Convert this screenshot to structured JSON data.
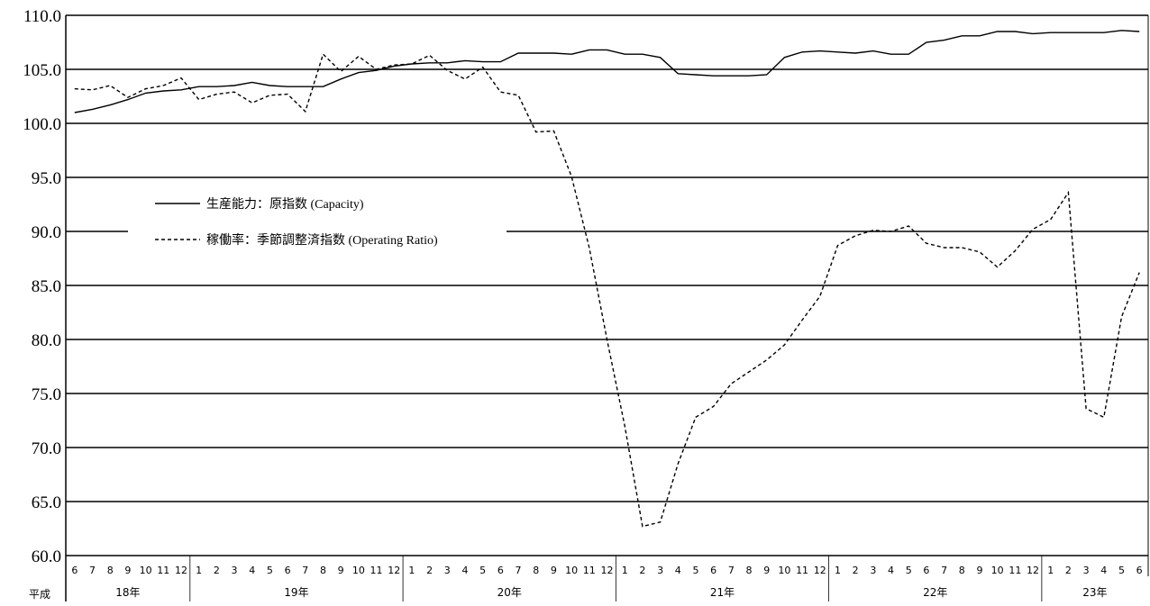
{
  "chart_data": {
    "type": "line",
    "era_prefix": "平成",
    "ylim": [
      60,
      110
    ],
    "yticks": [
      "60.0",
      "65.0",
      "70.0",
      "75.0",
      "80.0",
      "85.0",
      "90.0",
      "95.0",
      "100.0",
      "105.0",
      "110.0"
    ],
    "months": [
      "6",
      "7",
      "8",
      "9",
      "10",
      "11",
      "12",
      "1",
      "2",
      "3",
      "4",
      "5",
      "6",
      "7",
      "8",
      "9",
      "10",
      "11",
      "12",
      "1",
      "2",
      "3",
      "4",
      "5",
      "6",
      "7",
      "8",
      "9",
      "10",
      "11",
      "12",
      "1",
      "2",
      "3",
      "4",
      "5",
      "6",
      "7",
      "8",
      "9",
      "10",
      "11",
      "12",
      "1",
      "2",
      "3",
      "4",
      "5",
      "6",
      "7",
      "8",
      "9",
      "10",
      "11",
      "12",
      "1",
      "2",
      "3",
      "4",
      "5",
      "6"
    ],
    "year_groups": [
      {
        "label": "18年",
        "months": 7
      },
      {
        "label": "19年",
        "months": 12
      },
      {
        "label": "20年",
        "months": 12
      },
      {
        "label": "21年",
        "months": 12
      },
      {
        "label": "22年",
        "months": 12
      },
      {
        "label": "23年",
        "months": 6
      }
    ],
    "series": [
      {
        "name": "生産能力：原指数 (Capacity)",
        "style": "solid",
        "color": "#000000",
        "values": [
          101.0,
          101.3,
          101.7,
          102.2,
          102.8,
          103.0,
          103.1,
          103.4,
          103.4,
          103.5,
          103.8,
          103.5,
          103.4,
          103.4,
          103.4,
          104.1,
          104.7,
          104.9,
          105.3,
          105.5,
          105.6,
          105.6,
          105.8,
          105.7,
          105.7,
          106.5,
          106.5,
          106.5,
          106.4,
          106.8,
          106.8,
          106.4,
          106.4,
          106.1,
          104.6,
          104.5,
          104.4,
          104.4,
          104.4,
          104.5,
          106.1,
          106.6,
          106.7,
          106.6,
          106.5,
          106.7,
          106.4,
          106.4,
          107.5,
          107.7,
          108.1,
          108.1,
          108.5,
          108.5,
          108.3,
          108.4,
          108.4,
          108.4,
          108.4,
          108.6,
          108.5
        ]
      },
      {
        "name": "稼働率：季節調整済指数 (Operating Ratio)",
        "style": "dashed",
        "color": "#000000",
        "values": [
          103.2,
          103.1,
          103.5,
          102.4,
          103.2,
          103.5,
          104.2,
          102.2,
          102.7,
          102.9,
          101.9,
          102.6,
          102.7,
          101.1,
          106.4,
          104.8,
          106.2,
          105.0,
          105.4,
          105.5,
          106.3,
          104.9,
          104.1,
          105.2,
          102.9,
          102.6,
          99.2,
          99.3,
          95.1,
          88.5,
          80.0,
          72.0,
          62.7,
          63.1,
          68.5,
          72.8,
          73.8,
          75.9,
          77.0,
          78.1,
          79.5,
          81.8,
          84.0,
          88.7,
          89.6,
          90.1,
          90.0,
          90.5,
          88.9,
          88.5,
          88.5,
          88.1,
          86.7,
          88.2,
          90.2,
          91.1,
          93.6,
          73.6,
          72.8,
          82.1,
          86.2
        ]
      }
    ]
  }
}
